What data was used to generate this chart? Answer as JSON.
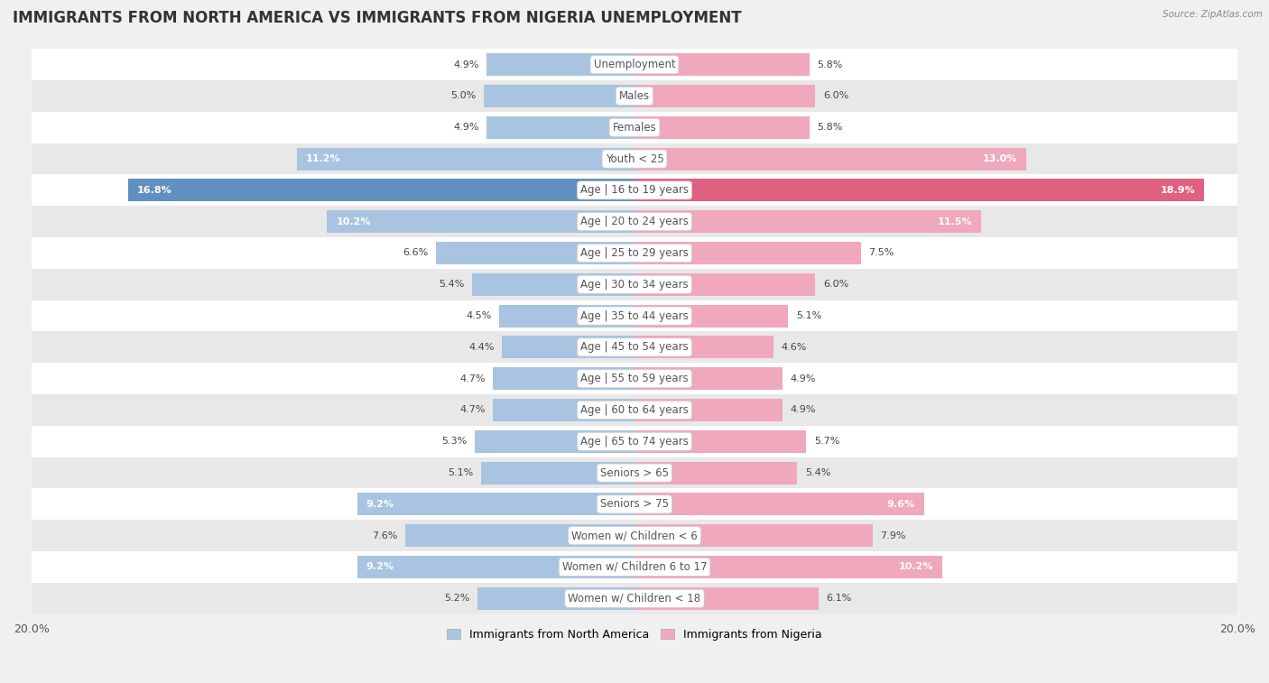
{
  "title": "IMMIGRANTS FROM NORTH AMERICA VS IMMIGRANTS FROM NIGERIA UNEMPLOYMENT",
  "source": "Source: ZipAtlas.com",
  "categories": [
    "Unemployment",
    "Males",
    "Females",
    "Youth < 25",
    "Age | 16 to 19 years",
    "Age | 20 to 24 years",
    "Age | 25 to 29 years",
    "Age | 30 to 34 years",
    "Age | 35 to 44 years",
    "Age | 45 to 54 years",
    "Age | 55 to 59 years",
    "Age | 60 to 64 years",
    "Age | 65 to 74 years",
    "Seniors > 65",
    "Seniors > 75",
    "Women w/ Children < 6",
    "Women w/ Children 6 to 17",
    "Women w/ Children < 18"
  ],
  "north_america": [
    4.9,
    5.0,
    4.9,
    11.2,
    16.8,
    10.2,
    6.6,
    5.4,
    4.5,
    4.4,
    4.7,
    4.7,
    5.3,
    5.1,
    9.2,
    7.6,
    9.2,
    5.2
  ],
  "nigeria": [
    5.8,
    6.0,
    5.8,
    13.0,
    18.9,
    11.5,
    7.5,
    6.0,
    5.1,
    4.6,
    4.9,
    4.9,
    5.7,
    5.4,
    9.6,
    7.9,
    10.2,
    6.1
  ],
  "color_north_america": "#a8c4e0",
  "color_nigeria": "#f0a8bc",
  "color_highlight_north_america": "#6090c0",
  "color_highlight_nigeria": "#e06080",
  "xlim": 20.0,
  "bg_color": "#f0f0f0",
  "row_color_even": "#ffffff",
  "row_color_odd": "#e8e8e8",
  "title_fontsize": 12,
  "label_fontsize": 8.5,
  "value_fontsize": 8.0
}
